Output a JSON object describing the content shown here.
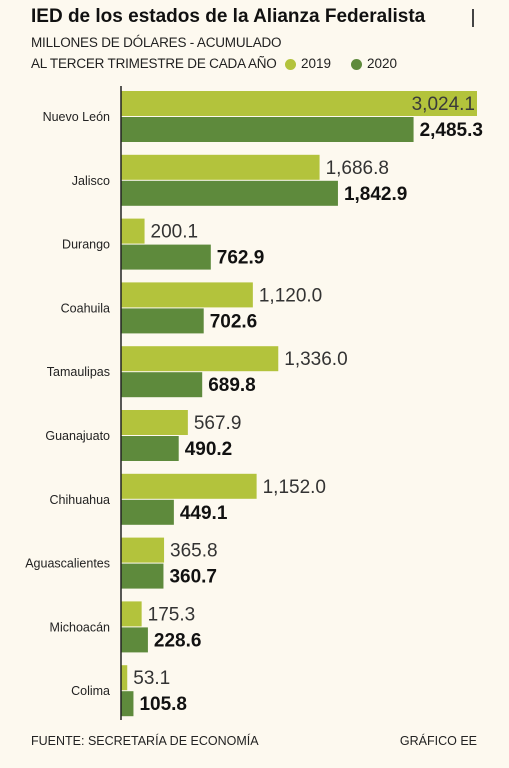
{
  "title": "IED de los estados de la Alianza Federalista",
  "subtitle_line1": "MILLONES DE DÓLARES - ACUMULADO",
  "subtitle_line2": "AL TERCER TRIMESTRE DE CADA AÑO",
  "colors": {
    "s2019": "#b3c33c",
    "s2020": "#5e8a3c",
    "axis": "#222222"
  },
  "chart_data": {
    "type": "bar",
    "orientation": "horizontal",
    "categories": [
      "Nuevo León",
      "Jalisco",
      "Durango",
      "Coahuila",
      "Tamaulipas",
      "Guanajuato",
      "Chihuahua",
      "Aguascalientes",
      "Michoacán",
      "Colima"
    ],
    "series": [
      {
        "name": "2019",
        "values": [
          3024.1,
          1686.8,
          200.1,
          1120.0,
          1336.0,
          567.9,
          1152.0,
          365.8,
          175.3,
          53.1
        ],
        "labels": [
          "3,024.1",
          "1,686.8",
          "200.1",
          "1,120.0",
          "1,336.0",
          "567.9",
          "1,152.0",
          "365.8",
          "175.3",
          "53.1"
        ]
      },
      {
        "name": "2020",
        "values": [
          2485.3,
          1842.9,
          762.9,
          702.6,
          689.8,
          490.2,
          449.1,
          360.7,
          228.6,
          105.8
        ],
        "labels": [
          "2,485.3",
          "1,842.9",
          "762.9",
          "702.6",
          "689.8",
          "490.2",
          "449.1",
          "360.7",
          "228.6",
          "105.8"
        ]
      }
    ],
    "xlim": [
      0,
      3024.1
    ],
    "legend": "top-right"
  },
  "footer": {
    "source": "FUENTE: SECRETARÍA DE ECONOMÍA",
    "credit": "GRÁFICO EE"
  }
}
